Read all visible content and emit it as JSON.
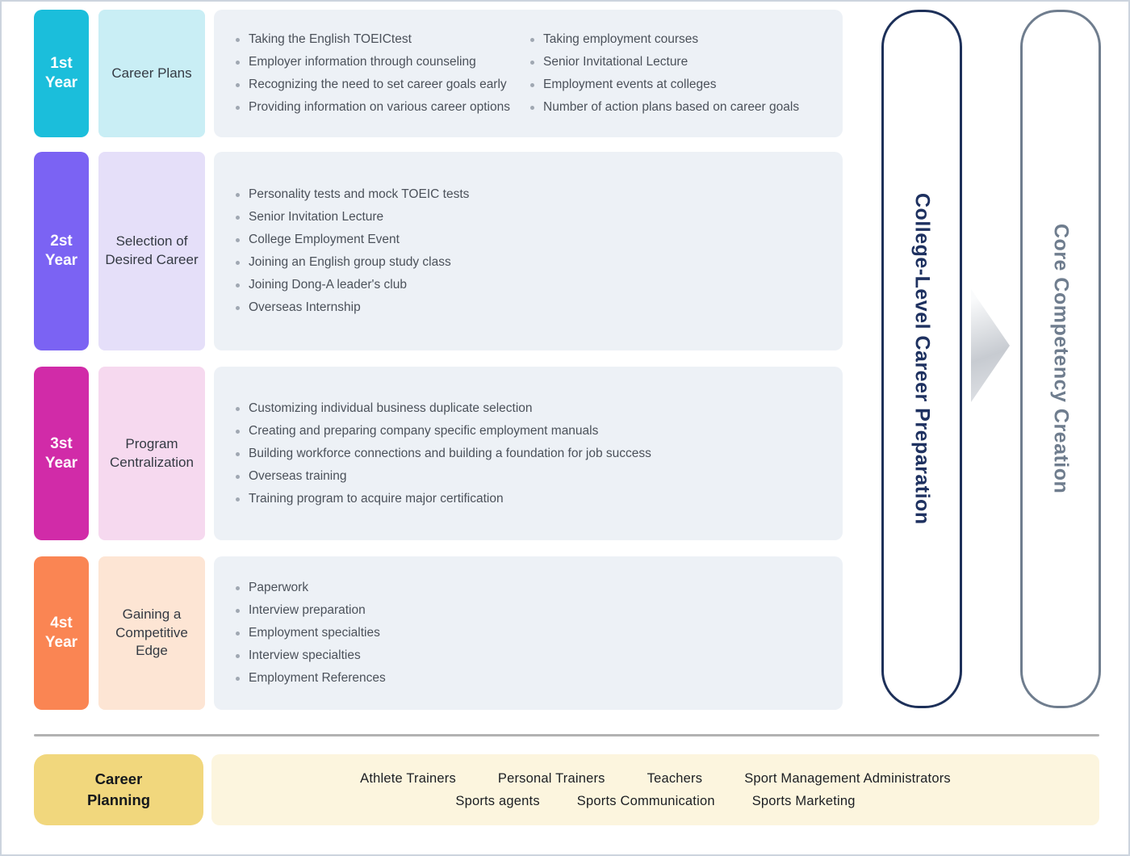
{
  "colors": {
    "year1_badge": "#1bbedb",
    "year1_label_bg": "#c9eef5",
    "year2_badge": "#7b63f3",
    "year2_label_bg": "#e5dff9",
    "year3_badge": "#d12ba8",
    "year3_label_bg": "#f6d9ef",
    "year4_badge": "#fa8553",
    "year4_label_bg": "#fde5d4",
    "content_bg": "#edf1f6",
    "banner_college": "#1e3160",
    "banner_core": "#6f7d8e",
    "career_planning_bg": "#f1d77d",
    "careers_bg": "#fcf5de",
    "divider": "#b2b2b2"
  },
  "rows": [
    {
      "year_line1": "1st",
      "year_line2": "Year",
      "label": "Career Plans",
      "items_left": [
        "Taking the English TOEICtest",
        "Employer information through counseling",
        "Recognizing the need to set career goals early",
        "Providing information on various career options"
      ],
      "items_right": [
        "Taking employment courses",
        "Senior Invitational Lecture",
        "Employment events at colleges",
        "Number of action plans based on career goals"
      ]
    },
    {
      "year_line1": "2st",
      "year_line2": "Year",
      "label": "Selection of Desired Career",
      "items": [
        "Personality tests and mock TOEIC tests",
        "Senior Invitation Lecture",
        "College Employment Event",
        "Joining an English group study class",
        "Joining Dong-A leader's club",
        "Overseas Internship"
      ]
    },
    {
      "year_line1": "3st",
      "year_line2": "Year",
      "label": "Program Centralization",
      "items": [
        "Customizing individual business duplicate selection",
        "Creating and preparing company specific employment manuals",
        "Building workforce connections and building a foundation for job success",
        "Overseas training",
        "Training program to acquire major certification"
      ]
    },
    {
      "year_line1": "4st",
      "year_line2": "Year",
      "label": "Gaining a Competitive Edge",
      "items": [
        "Paperwork",
        "Interview preparation",
        "Employment specialties",
        "Interview specialties",
        "Employment References"
      ]
    }
  ],
  "banners": {
    "college": "College-Level Career Preparation",
    "core": "Core Competency Creation"
  },
  "footer": {
    "title": "Career Planning",
    "careers_row1": [
      "Athlete Trainers",
      "Personal Trainers",
      "Teachers",
      "Sport Management Administrators"
    ],
    "careers_row2": [
      "Sports agents",
      "Sports Communication",
      "Sports Marketing"
    ]
  }
}
